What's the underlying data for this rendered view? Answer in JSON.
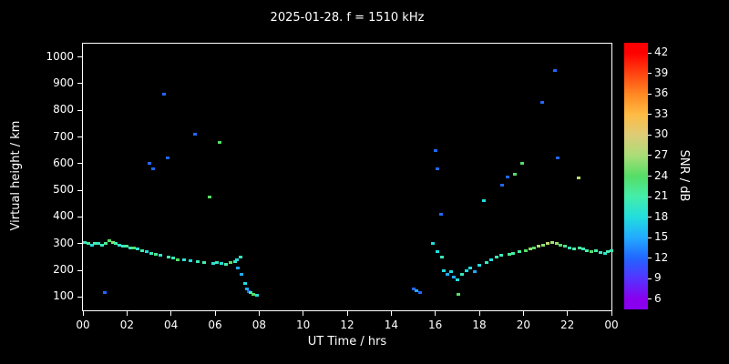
{
  "title": "2025-01-28. f = 1510 kHz",
  "chart_data": {
    "type": "scatter",
    "title": "2025-01-28. f = 1510 kHz",
    "xlabel": "UT Time / hrs",
    "ylabel": "Virtual height / km",
    "colorbar_label": "SNR / dB",
    "xlim": [
      0,
      24
    ],
    "ylim": [
      50,
      1050
    ],
    "background": "#000000",
    "frame_color": "#ffffff",
    "grid": false,
    "x_tick_values": [
      0,
      2,
      4,
      6,
      8,
      10,
      12,
      14,
      16,
      18,
      20,
      22,
      24
    ],
    "x_tick_labels": [
      "00",
      "02",
      "04",
      "06",
      "08",
      "10",
      "12",
      "14",
      "16",
      "18",
      "20",
      "22",
      "00"
    ],
    "y_ticks": [
      100,
      200,
      300,
      400,
      500,
      600,
      700,
      800,
      900,
      1000
    ],
    "colorbar_ticks": [
      42,
      39,
      36,
      33,
      30,
      27,
      24,
      21,
      18,
      15,
      12,
      9,
      6
    ],
    "colorbar_range": [
      4.5,
      43.5
    ],
    "colorscale": [
      [
        6,
        "#8800ee"
      ],
      [
        9,
        "#5533ff"
      ],
      [
        12,
        "#2266ff"
      ],
      [
        15,
        "#22aaff"
      ],
      [
        18,
        "#22dddd"
      ],
      [
        21,
        "#44eeaa"
      ],
      [
        24,
        "#55dd66"
      ],
      [
        27,
        "#aadd77"
      ],
      [
        30,
        "#ddcc77"
      ],
      [
        33,
        "#ffbb44"
      ],
      [
        36,
        "#ff8822"
      ],
      [
        39,
        "#ff4411"
      ],
      [
        42,
        "#ff0000"
      ]
    ],
    "points": [
      [
        0.1,
        305,
        20
      ],
      [
        0.25,
        300,
        22
      ],
      [
        0.4,
        295,
        18
      ],
      [
        0.55,
        300,
        21
      ],
      [
        0.7,
        300,
        19
      ],
      [
        0.85,
        295,
        20
      ],
      [
        1.0,
        115,
        12
      ],
      [
        1.05,
        300,
        22
      ],
      [
        1.2,
        310,
        24
      ],
      [
        1.35,
        305,
        26
      ],
      [
        1.5,
        300,
        21
      ],
      [
        1.65,
        295,
        19
      ],
      [
        1.8,
        290,
        20
      ],
      [
        2.0,
        290,
        22
      ],
      [
        2.15,
        285,
        20
      ],
      [
        2.3,
        285,
        24
      ],
      [
        2.5,
        280,
        19
      ],
      [
        2.7,
        275,
        21
      ],
      [
        2.9,
        270,
        18
      ],
      [
        3.0,
        600,
        12
      ],
      [
        3.2,
        580,
        12
      ],
      [
        3.1,
        265,
        20
      ],
      [
        3.3,
        260,
        22
      ],
      [
        3.5,
        255,
        19
      ],
      [
        3.7,
        860,
        12
      ],
      [
        3.85,
        620,
        12
      ],
      [
        3.9,
        250,
        21
      ],
      [
        4.1,
        245,
        20
      ],
      [
        4.3,
        240,
        24
      ],
      [
        4.6,
        238,
        19
      ],
      [
        4.9,
        235,
        18
      ],
      [
        5.1,
        710,
        12
      ],
      [
        5.2,
        232,
        20
      ],
      [
        5.5,
        228,
        21
      ],
      [
        5.75,
        475,
        24
      ],
      [
        5.9,
        225,
        19
      ],
      [
        6.2,
        680,
        24
      ],
      [
        6.1,
        228,
        20
      ],
      [
        6.3,
        225,
        18
      ],
      [
        6.5,
        222,
        21
      ],
      [
        6.7,
        228,
        24
      ],
      [
        6.9,
        232,
        20
      ],
      [
        7.0,
        240,
        18
      ],
      [
        7.05,
        210,
        15
      ],
      [
        7.15,
        250,
        20
      ],
      [
        7.2,
        185,
        15
      ],
      [
        7.35,
        150,
        18
      ],
      [
        7.45,
        130,
        15
      ],
      [
        7.55,
        120,
        12
      ],
      [
        7.6,
        115,
        21
      ],
      [
        7.75,
        110,
        24
      ],
      [
        7.9,
        108,
        18
      ],
      [
        15.0,
        130,
        12
      ],
      [
        15.15,
        125,
        15
      ],
      [
        15.3,
        115,
        12
      ],
      [
        15.9,
        300,
        18
      ],
      [
        16.0,
        650,
        12
      ],
      [
        16.1,
        580,
        12
      ],
      [
        16.1,
        270,
        18
      ],
      [
        16.25,
        410,
        12
      ],
      [
        16.3,
        250,
        20
      ],
      [
        16.4,
        200,
        18
      ],
      [
        16.55,
        185,
        15
      ],
      [
        16.7,
        195,
        18
      ],
      [
        16.85,
        175,
        15
      ],
      [
        17.0,
        165,
        18
      ],
      [
        17.05,
        110,
        24
      ],
      [
        17.2,
        185,
        20
      ],
      [
        17.4,
        200,
        18
      ],
      [
        17.6,
        210,
        18
      ],
      [
        17.8,
        195,
        15
      ],
      [
        18.0,
        220,
        18
      ],
      [
        18.2,
        460,
        18
      ],
      [
        18.35,
        230,
        20
      ],
      [
        18.55,
        240,
        18
      ],
      [
        18.8,
        250,
        21
      ],
      [
        19.0,
        255,
        20
      ],
      [
        19.05,
        520,
        12
      ],
      [
        19.3,
        550,
        12
      ],
      [
        19.35,
        260,
        22
      ],
      [
        19.55,
        265,
        21
      ],
      [
        19.6,
        560,
        24
      ],
      [
        19.8,
        270,
        22
      ],
      [
        19.95,
        600,
        24
      ],
      [
        20.1,
        275,
        24
      ],
      [
        20.3,
        280,
        26
      ],
      [
        20.5,
        285,
        24
      ],
      [
        20.7,
        290,
        27
      ],
      [
        20.85,
        830,
        12
      ],
      [
        20.9,
        295,
        26
      ],
      [
        21.1,
        300,
        28
      ],
      [
        21.3,
        305,
        27
      ],
      [
        21.45,
        950,
        12
      ],
      [
        21.5,
        300,
        26
      ],
      [
        21.55,
        620,
        12
      ],
      [
        21.7,
        295,
        24
      ],
      [
        21.9,
        290,
        22
      ],
      [
        22.1,
        285,
        20
      ],
      [
        22.3,
        280,
        21
      ],
      [
        22.5,
        545,
        28
      ],
      [
        22.55,
        285,
        22
      ],
      [
        22.7,
        280,
        20
      ],
      [
        22.9,
        275,
        21
      ],
      [
        23.1,
        270,
        24
      ],
      [
        23.3,
        272,
        21
      ],
      [
        23.5,
        268,
        20
      ],
      [
        23.7,
        265,
        19
      ],
      [
        23.85,
        270,
        21
      ],
      [
        24.0,
        272,
        20
      ]
    ]
  }
}
